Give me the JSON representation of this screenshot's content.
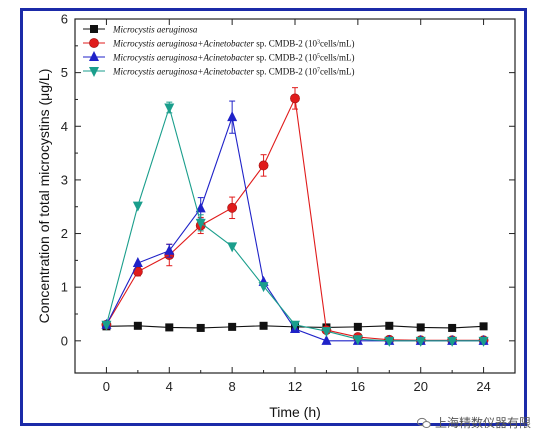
{
  "chart_data": {
    "type": "line",
    "title": "",
    "xlabel": "Time (h)",
    "ylabel": "Concentration of total microcystins (μg/L)",
    "xlim": [
      -2,
      26
    ],
    "ylim": [
      -0.6,
      6
    ],
    "xticks": [
      0,
      4,
      8,
      12,
      16,
      20,
      24
    ],
    "yticks": [
      0,
      1,
      2,
      3,
      4,
      5,
      6
    ],
    "grid": false,
    "legend_position": "top-left",
    "series": [
      {
        "name": "Microcystis aeruginosa",
        "legend": {
          "italic": "Microcystis aeruginosa",
          "rest": "",
          "exp": ""
        },
        "marker": "square",
        "color": "#111111",
        "x": [
          0,
          2,
          4,
          6,
          8,
          10,
          12,
          14,
          16,
          18,
          20,
          22,
          24
        ],
        "y": [
          0.27,
          0.28,
          0.25,
          0.24,
          0.26,
          0.28,
          0.26,
          0.25,
          0.26,
          0.28,
          0.25,
          0.24,
          0.27
        ],
        "err": [
          0,
          0,
          0,
          0,
          0,
          0,
          0,
          0,
          0,
          0,
          0,
          0,
          0
        ]
      },
      {
        "name": "Microcystis aeruginosa+Acinetobacter sp. CMDB-2 (10³cells/mL)",
        "legend": {
          "italic": "Microcystis aeruginosa+Acinetobacter",
          "rest": " sp. CMDB-2 (10",
          "exp": "3",
          "tail": "cells/mL)"
        },
        "marker": "circle",
        "color": "#e01b1b",
        "x": [
          0,
          2,
          4,
          6,
          8,
          10,
          12,
          14,
          16,
          18,
          20,
          22,
          24
        ],
        "y": [
          0.3,
          1.29,
          1.6,
          2.15,
          2.48,
          3.27,
          4.52,
          0.2,
          0.07,
          0.02,
          0.01,
          0.01,
          0.01
        ],
        "err": [
          0,
          0.08,
          0.2,
          0.15,
          0.2,
          0.2,
          0.2,
          0.05,
          0,
          0,
          0,
          0,
          0
        ]
      },
      {
        "name": "Microcystis aeruginosa+Acinetobacter sp. CMDB-2 (10⁵cells/mL)",
        "legend": {
          "italic": "Microcystis aeruginosa+Acinetobacter",
          "rest": " sp. CMDB-2 (10",
          "exp": "5",
          "tail": "cells/mL)"
        },
        "marker": "triangle-up",
        "color": "#1f22c8",
        "x": [
          0,
          2,
          4,
          6,
          8,
          10,
          12,
          14,
          16,
          18,
          20,
          22,
          24
        ],
        "y": [
          0.3,
          1.45,
          1.68,
          2.47,
          4.17,
          1.1,
          0.22,
          0.0,
          0.0,
          0.0,
          0.0,
          0.0,
          0.0
        ],
        "err": [
          0,
          0,
          0.12,
          0.2,
          0.3,
          0,
          0,
          0,
          0,
          0,
          0,
          0,
          0
        ]
      },
      {
        "name": "Microcystis aeruginosa+Acinetobacter sp. CMDB-2 (10⁷cells/mL)",
        "legend": {
          "italic": "Microcystis aeruginosa+Acinetobacter",
          "rest": " sp. CMDB-2 (10",
          "exp": "7",
          "tail": "cells/mL)"
        },
        "marker": "triangle-down",
        "color": "#1a9e8c",
        "x": [
          0,
          2,
          4,
          6,
          8,
          10,
          12,
          14,
          16,
          18,
          20,
          22,
          24
        ],
        "y": [
          0.3,
          2.52,
          4.35,
          2.2,
          1.76,
          1.02,
          0.3,
          0.18,
          0.03,
          0.0,
          0.0,
          0.0,
          0.0
        ],
        "err": [
          0,
          0,
          0.1,
          0.15,
          0,
          0,
          0,
          0,
          0,
          0,
          0,
          0,
          0
        ]
      }
    ]
  },
  "watermark": {
    "text": "上海精数仪器有限",
    "icon": "wechat-logo-icon"
  }
}
